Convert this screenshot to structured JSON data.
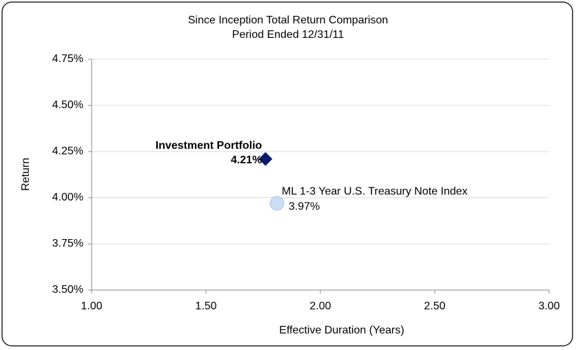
{
  "chart_data": {
    "type": "scatter",
    "title": "Since Inception Total Return Comparison",
    "subtitle": "Period Ended 12/31/11",
    "x_label": "Effective Duration (Years)",
    "y_label": "Return",
    "xlim": [
      1,
      3
    ],
    "xticks": [
      {
        "value": 1,
        "label": "1.00"
      },
      {
        "value": 1.5,
        "label": "1.50"
      },
      {
        "value": 2,
        "label": "2.00"
      },
      {
        "value": 2.5,
        "label": "2.50"
      },
      {
        "value": 3,
        "label": "3.00"
      }
    ],
    "ylim": [
      3.5,
      4.75
    ],
    "yticks": [
      {
        "value": 3.5,
        "label": "3.50%"
      },
      {
        "value": 3.75,
        "label": "3.75%"
      },
      {
        "value": 4,
        "label": "4.00%"
      },
      {
        "value": 4.25,
        "label": "4.25%"
      },
      {
        "value": 4.5,
        "label": "4.50%"
      },
      {
        "value": 4.75,
        "label": "4.75%"
      }
    ],
    "grid": true,
    "series": [
      {
        "name": "Investment Portfolio",
        "color": "#0a1a6e",
        "marker": "diamond",
        "x": [
          1.76
        ],
        "values": [
          4.21
        ],
        "value_labels": [
          "4.21%"
        ]
      },
      {
        "name": "ML 1-3 Year U.S. Treasury Note Index",
        "color": "#c9ddf5",
        "marker": "circle",
        "x": [
          1.81
        ],
        "values": [
          3.97
        ],
        "value_labels": [
          "3.97%"
        ]
      }
    ]
  }
}
